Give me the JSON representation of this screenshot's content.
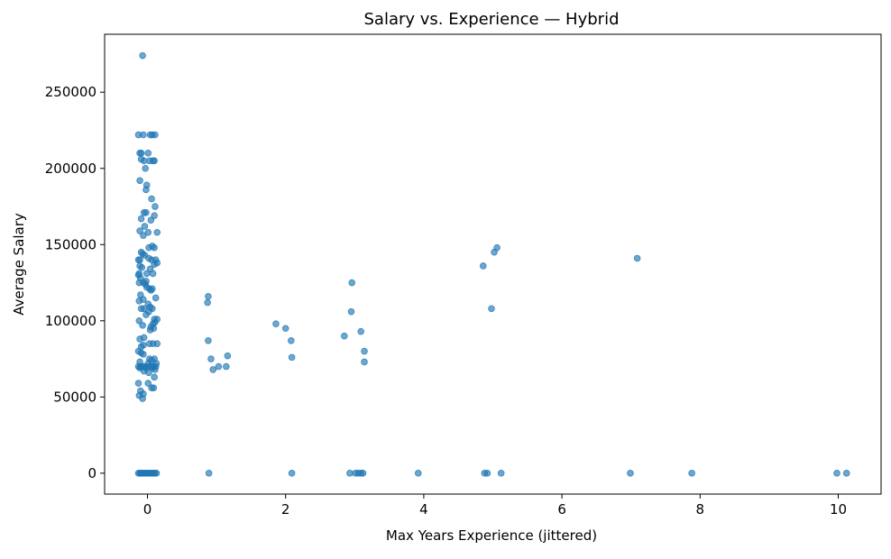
{
  "chart_data": {
    "type": "scatter",
    "title": "Salary vs. Experience — Hybrid",
    "xlabel": "Max Years Experience (jittered)",
    "ylabel": "Average Salary",
    "xlim": [
      -0.62,
      10.62
    ],
    "ylim": [
      -13700,
      288000
    ],
    "xticks": [
      0,
      2,
      4,
      6,
      8,
      10
    ],
    "yticks": [
      0,
      50000,
      100000,
      150000,
      200000,
      250000
    ],
    "grid": false,
    "legend": "none",
    "marker_color": "#1f77b4",
    "marker_alpha": 0.65,
    "series": [
      {
        "points": [
          [
            -0.13,
            0
          ],
          [
            -0.11,
            0
          ],
          [
            -0.09,
            0
          ],
          [
            -0.07,
            0
          ],
          [
            -0.05,
            0
          ],
          [
            -0.03,
            0
          ],
          [
            -0.01,
            0
          ],
          [
            0.01,
            0
          ],
          [
            0.03,
            0
          ],
          [
            0.05,
            0
          ],
          [
            0.07,
            0
          ],
          [
            0.09,
            0
          ],
          [
            0.11,
            0
          ],
          [
            0.13,
            0
          ],
          [
            0.89,
            0
          ],
          [
            2.09,
            0
          ],
          [
            2.93,
            0
          ],
          [
            3.01,
            0
          ],
          [
            3.05,
            0
          ],
          [
            3.09,
            0
          ],
          [
            3.12,
            0
          ],
          [
            3.92,
            0
          ],
          [
            4.88,
            0
          ],
          [
            4.92,
            0
          ],
          [
            5.12,
            0
          ],
          [
            6.99,
            0
          ],
          [
            7.88,
            0
          ],
          [
            9.98,
            0
          ],
          [
            10.12,
            0
          ],
          [
            -0.07,
            274000
          ],
          [
            -0.13,
            222000
          ],
          [
            -0.06,
            222000
          ],
          [
            0.04,
            222000
          ],
          [
            0.07,
            222000
          ],
          [
            0.11,
            222000
          ],
          [
            -0.11,
            210000
          ],
          [
            -0.09,
            210000
          ],
          [
            0.01,
            210000
          ],
          [
            -0.09,
            206000
          ],
          [
            -0.05,
            205000
          ],
          [
            0.03,
            205000
          ],
          [
            0.08,
            205000
          ],
          [
            0.1,
            205000
          ],
          [
            -0.03,
            200000
          ],
          [
            -0.11,
            192000
          ],
          [
            -0.01,
            189000
          ],
          [
            -0.02,
            186000
          ],
          [
            0.06,
            180000
          ],
          [
            0.11,
            175000
          ],
          [
            -0.05,
            171000
          ],
          [
            -0.02,
            171000
          ],
          [
            0.1,
            169000
          ],
          [
            -0.09,
            167000
          ],
          [
            0.05,
            166000
          ],
          [
            -0.04,
            162000
          ],
          [
            -0.11,
            159000
          ],
          [
            0.01,
            158000
          ],
          [
            0.14,
            158000
          ],
          [
            -0.06,
            156000
          ],
          [
            0.07,
            149000
          ],
          [
            0.1,
            148000
          ],
          [
            0.02,
            148000
          ],
          [
            -0.09,
            145000
          ],
          [
            -0.07,
            144000
          ],
          [
            -0.04,
            143000
          ],
          [
            0.02,
            141000
          ],
          [
            -0.13,
            140000
          ],
          [
            -0.11,
            140000
          ],
          [
            0.06,
            140000
          ],
          [
            0.12,
            140000
          ],
          [
            0.14,
            138000
          ],
          [
            0.1,
            137000
          ],
          [
            -0.11,
            136000
          ],
          [
            -0.08,
            135000
          ],
          [
            0.04,
            134000
          ],
          [
            -0.12,
            131000
          ],
          [
            -0.01,
            131000
          ],
          [
            0.08,
            131000
          ],
          [
            -0.13,
            130000
          ],
          [
            -0.1,
            128000
          ],
          [
            -0.02,
            126000
          ],
          [
            -0.12,
            125000
          ],
          [
            -0.06,
            125000
          ],
          [
            -0.03,
            124000
          ],
          [
            -0.01,
            122000
          ],
          [
            0.03,
            121000
          ],
          [
            0.07,
            121000
          ],
          [
            0.05,
            120000
          ],
          [
            -0.1,
            117000
          ],
          [
            0.12,
            115000
          ],
          [
            -0.06,
            114000
          ],
          [
            -0.12,
            113000
          ],
          [
            0.01,
            111000
          ],
          [
            0.04,
            109000
          ],
          [
            -0.09,
            108000
          ],
          [
            -0.05,
            108000
          ],
          [
            0.07,
            108000
          ],
          [
            0.02,
            106000
          ],
          [
            -0.02,
            104000
          ],
          [
            0.1,
            101000
          ],
          [
            0.14,
            101000
          ],
          [
            -0.12,
            100000
          ],
          [
            0.11,
            99000
          ],
          [
            0.08,
            98000
          ],
          [
            -0.07,
            97000
          ],
          [
            0.05,
            96000
          ],
          [
            0.09,
            95000
          ],
          [
            0.04,
            94000
          ],
          [
            -0.05,
            89000
          ],
          [
            -0.11,
            88000
          ],
          [
            0.03,
            85000
          ],
          [
            0.08,
            85000
          ],
          [
            0.14,
            85000
          ],
          [
            -0.06,
            84000
          ],
          [
            -0.09,
            83000
          ],
          [
            -0.13,
            80000
          ],
          [
            -0.09,
            79000
          ],
          [
            -0.06,
            78000
          ],
          [
            0.03,
            75000
          ],
          [
            0.1,
            75000
          ],
          [
            0.06,
            74000
          ],
          [
            -0.11,
            73000
          ],
          [
            0.01,
            72000
          ],
          [
            0.13,
            72000
          ],
          [
            -0.13,
            70000
          ],
          [
            -0.1,
            70000
          ],
          [
            -0.07,
            70000
          ],
          [
            -0.04,
            70000
          ],
          [
            0.01,
            70000
          ],
          [
            0.05,
            70000
          ],
          [
            0.09,
            70000
          ],
          [
            0.12,
            70000
          ],
          [
            -0.11,
            69000
          ],
          [
            -0.02,
            69000
          ],
          [
            0.07,
            69000
          ],
          [
            0.11,
            68000
          ],
          [
            -0.05,
            67000
          ],
          [
            0.02,
            66000
          ],
          [
            0.1,
            63000
          ],
          [
            -0.13,
            59000
          ],
          [
            0.01,
            59000
          ],
          [
            0.06,
            56000
          ],
          [
            0.09,
            56000
          ],
          [
            -0.1,
            54000
          ],
          [
            -0.12,
            51000
          ],
          [
            -0.06,
            52000
          ],
          [
            -0.07,
            49000
          ],
          [
            0.88,
            116000
          ],
          [
            0.87,
            112000
          ],
          [
            0.88,
            87000
          ],
          [
            0.92,
            75000
          ],
          [
            0.95,
            68000
          ],
          [
            1.03,
            70000
          ],
          [
            1.14,
            70000
          ],
          [
            1.16,
            77000
          ],
          [
            1.86,
            98000
          ],
          [
            2.0,
            95000
          ],
          [
            2.08,
            87000
          ],
          [
            2.09,
            76000
          ],
          [
            2.96,
            125000
          ],
          [
            2.95,
            106000
          ],
          [
            3.09,
            93000
          ],
          [
            2.85,
            90000
          ],
          [
            3.14,
            80000
          ],
          [
            3.14,
            73000
          ],
          [
            4.86,
            136000
          ],
          [
            5.02,
            145000
          ],
          [
            5.06,
            148000
          ],
          [
            4.98,
            108000
          ],
          [
            7.09,
            141000
          ]
        ]
      }
    ]
  }
}
